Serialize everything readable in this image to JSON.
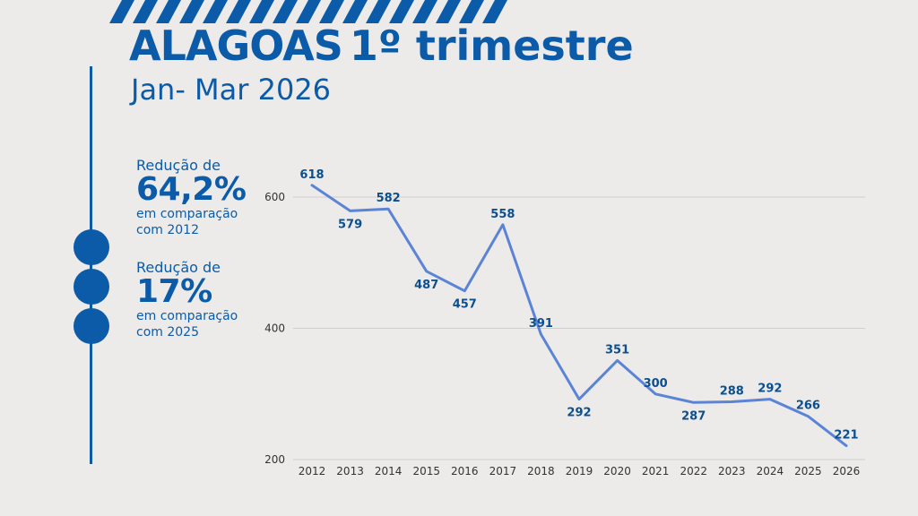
{
  "header": {
    "title_bold": "ALAGOAS",
    "title_rest": "1º trimestre",
    "subtitle": "Jan- Mar 2026"
  },
  "stats": [
    {
      "label": "Redução de",
      "value": "64,2%",
      "note1": "em comparação",
      "note2": "com 2012"
    },
    {
      "label": "Redução de",
      "value": "17%",
      "note1": "em comparação",
      "note2": "com 2025"
    }
  ],
  "colors": {
    "brand": "#0b5ba8",
    "line": "#5b84d6",
    "background": "#ecebe9"
  },
  "chart_data": {
    "type": "line",
    "x": [
      "2012",
      "2013",
      "2014",
      "2015",
      "2016",
      "2017",
      "2018",
      "2019",
      "2020",
      "2021",
      "2022",
      "2023",
      "2024",
      "2025",
      "2026"
    ],
    "series": [
      {
        "values": [
          618,
          579,
          582,
          487,
          457,
          558,
          391,
          292,
          351,
          300,
          287,
          288,
          292,
          266,
          221
        ]
      }
    ],
    "label_above": [
      true,
      false,
      true,
      false,
      false,
      true,
      true,
      false,
      true,
      true,
      false,
      true,
      true,
      true,
      true
    ],
    "yticks": [
      200,
      400,
      600
    ],
    "ylim": [
      200,
      600
    ],
    "grid": true,
    "title": "",
    "xlabel": "",
    "ylabel": ""
  }
}
